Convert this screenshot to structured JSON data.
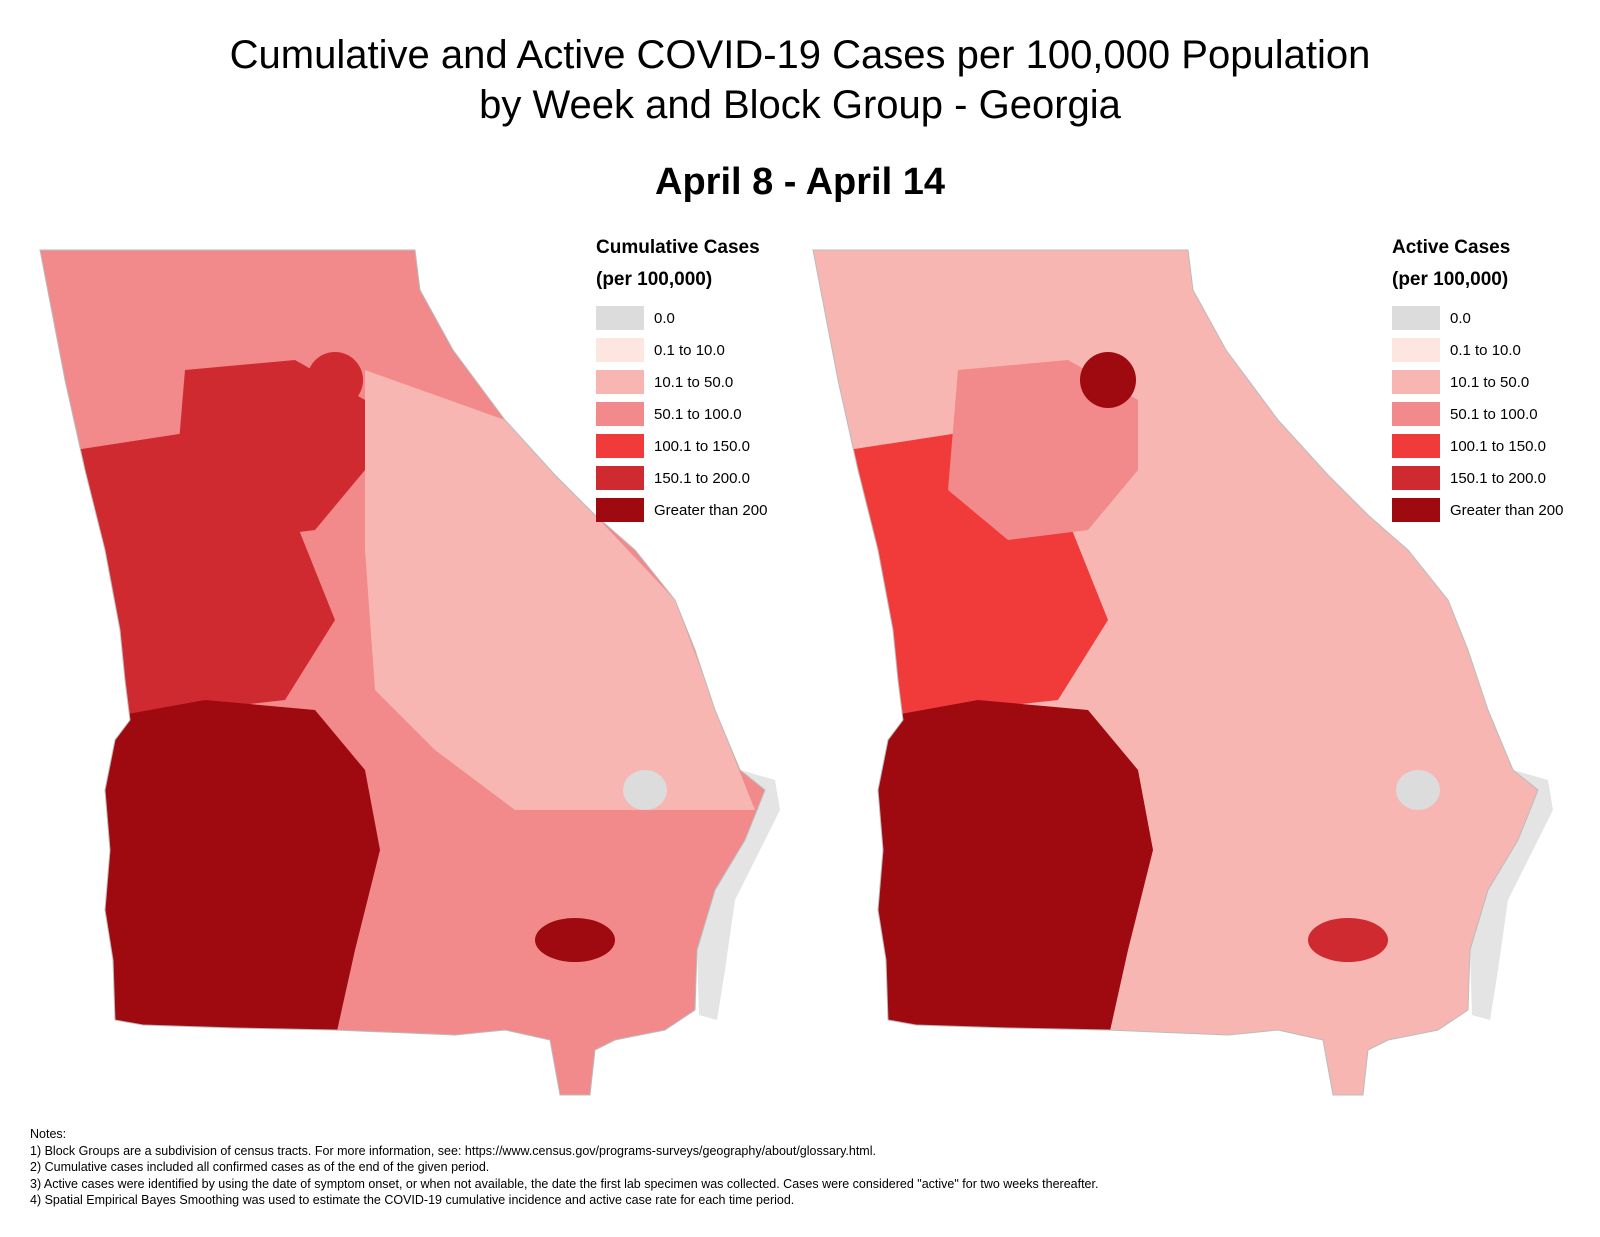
{
  "title": {
    "line1": "Cumulative and Active COVID-19 Cases per 100,000 Population",
    "line2": "by Week and Block Group - Georgia"
  },
  "period": "April 8 - April 14",
  "legend_classes": [
    {
      "label": "0.0",
      "color": "#dcdcdc"
    },
    {
      "label": "0.1 to 10.0",
      "color": "#fde6df"
    },
    {
      "label": "10.1 to 50.0",
      "color": "#f8b6b3"
    },
    {
      "label": "50.1 to 100.0",
      "color": "#f2898a"
    },
    {
      "label": "100.1 to 150.0",
      "color": "#f13b3b"
    },
    {
      "label": "150.1 to 200.0",
      "color": "#cf2a30"
    },
    {
      "label": "Greater than 200",
      "color": "#9e0a0f"
    }
  ],
  "maps": {
    "cumulative": {
      "legend_title": "Cumulative Cases",
      "legend_subtitle": "(per 100,000)",
      "region_classes": {
        "southwest": "Greater than 200",
        "west_central": "150.1 to 200.0",
        "atlanta_metro": "150.1 to 200.0",
        "north": "50.1 to 100.0",
        "east": "10.1 to 50.0",
        "southeast": "50.1 to 100.0",
        "albany": "Greater than 200",
        "athens": "150.1 to 200.0",
        "savannah": "Greater than 200",
        "coastal_marsh": "0.0"
      }
    },
    "active": {
      "legend_title": "Active Cases",
      "legend_subtitle": "(per 100,000)",
      "region_classes": {
        "southwest": "Greater than 200",
        "west_central": "100.1 to 150.0",
        "atlanta_metro": "50.1 to 100.0",
        "north": "10.1 to 50.0",
        "east": "10.1 to 50.0",
        "southeast": "10.1 to 50.0",
        "albany": "Greater than 200",
        "athens": "Greater than 200",
        "savannah": "150.1 to 200.0",
        "coastal_marsh": "0.0"
      }
    }
  },
  "notes": [
    "Notes:",
    "1) Block Groups are a subdivision of census tracts. For more information, see: https://www.census.gov/programs-surveys/geography/about/glossary.html.",
    "2) Cumulative cases included all confirmed cases as of the end of the given period.",
    "3) Active cases were identified by using the date of symptom onset, or when not available, the date the first lab specimen was collected. Cases were considered \"active\" for two weeks thereafter.",
    "4) Spatial Empirical Bayes Smoothing was used to estimate the COVID-19 cumulative incidence and active case rate for each time period."
  ]
}
